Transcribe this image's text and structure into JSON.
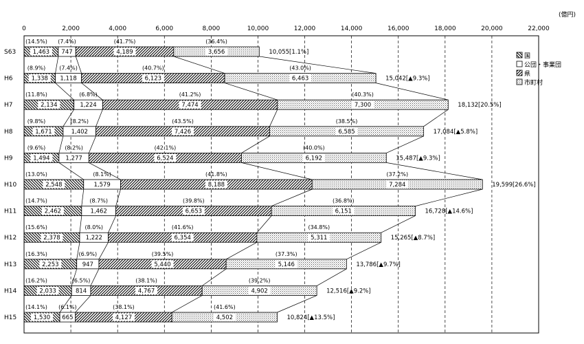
{
  "chart_data": {
    "type": "bar",
    "stacked": true,
    "orientation": "horizontal",
    "unit_label": "(億円)",
    "xlim": [
      0,
      22000
    ],
    "xticks": [
      "0",
      "2,000",
      "4,000",
      "6,000",
      "8,000",
      "10,000",
      "12,000",
      "14,000",
      "16,000",
      "18,000",
      "20,000",
      "22,000"
    ],
    "grid": "vertical dashed",
    "legend_position": "right",
    "categories": [
      "S63",
      "H6",
      "H7",
      "H8",
      "H9",
      "H10",
      "H11",
      "H12",
      "H13",
      "H14",
      "H15"
    ],
    "series": [
      {
        "name": "国",
        "pattern": "backslash",
        "values": [
          1463,
          1338,
          2134,
          1671,
          1494,
          2548,
          2462,
          2378,
          2253,
          2033,
          1530
        ],
        "value_labels": [
          "1,463",
          "1,338",
          "2,134",
          "1,671",
          "1,494",
          "2,548",
          "2,462",
          "2,378",
          "2,253",
          "2,033",
          "1,530"
        ],
        "share_labels": [
          "(14.5%)",
          "(8.9%)",
          "(11.8%)",
          "(9.8%)",
          "(9.6%)",
          "(13.0%)",
          "(14.7%)",
          "(15.6%)",
          "(16.3%)",
          "(16.2%)",
          "(14.1%)"
        ]
      },
      {
        "name": "公団・事業団",
        "pattern": "blank",
        "values": [
          747,
          1118,
          1224,
          1402,
          1277,
          1579,
          1462,
          1222,
          947,
          814,
          665
        ],
        "value_labels": [
          "747",
          "1,118",
          "1,224",
          "1,402",
          "1,277",
          "1,579",
          "1,462",
          "1,222",
          "947",
          "814",
          "665"
        ],
        "share_labels": [
          "(7.4%)",
          "(7.4%)",
          "(6.8%)",
          "(8.2%)",
          "(8.2%)",
          "(8.1%)",
          "(8.7%)",
          "(8.0%)",
          "(6.9%)",
          "(6.5%)",
          "(6.1%)"
        ]
      },
      {
        "name": "県",
        "pattern": "slash",
        "values": [
          4189,
          6123,
          7474,
          7426,
          6524,
          8188,
          6653,
          6354,
          5440,
          4767,
          4127
        ],
        "value_labels": [
          "4,189",
          "6,123",
          "7,474",
          "7,426",
          "6,524",
          "8,188",
          "6,653",
          "6,354",
          "5,440",
          "4,767",
          "4,127"
        ],
        "share_labels": [
          "(41.7%)",
          "(40.7%)",
          "(41.2%)",
          "(43.5%)",
          "(42.1%)",
          "(41.8%)",
          "(39.8%)",
          "(41.6%)",
          "(39.5%)",
          "(38.1%)",
          "(38.1%)"
        ]
      },
      {
        "name": "市町村",
        "pattern": "dots",
        "values": [
          3656,
          6463,
          7300,
          6585,
          6192,
          7284,
          6151,
          5311,
          5146,
          4902,
          4502
        ],
        "value_labels": [
          "3,656",
          "6,463",
          "7,300",
          "6,585",
          "6,192",
          "7,284",
          "6,151",
          "5,311",
          "5,146",
          "4,902",
          "4,502"
        ],
        "share_labels": [
          "(36.4%)",
          "(43.0%)",
          "(40.3%)",
          "(38.5%)",
          "(40.0%)",
          "(37.2%)",
          "(36.8%)",
          "(34.8%)",
          "(37.3%)",
          "(39.2%)",
          "(41.6%)"
        ]
      }
    ],
    "totals": [
      10055,
      15042,
      18132,
      17084,
      15487,
      19599,
      16728,
      15265,
      13786,
      12516,
      10824
    ],
    "total_labels": [
      "10,055[1.1%]",
      "15,042[▲9.3%]",
      "18,132[20.5%]",
      "17,084[▲5.8%]",
      "15,487[▲9.3%]",
      "19,599[26.6%]",
      "16,728[▲14.6%]",
      "15,265[▲8.7%]",
      "13,786[▲9.7%]",
      "12,516[▲9.2%]",
      "10,824[▲13.5%]"
    ],
    "legend": [
      "国",
      "公団・事業団",
      "県",
      "市町村"
    ]
  }
}
